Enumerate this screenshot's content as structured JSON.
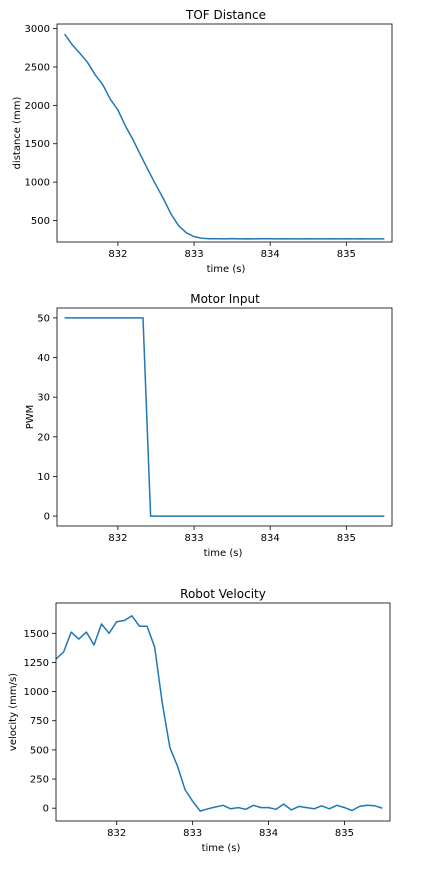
{
  "chart_data": [
    {
      "type": "line",
      "title": "TOF Distance",
      "xlabel": "time (s)",
      "ylabel": "distance (mm)",
      "xlim": [
        831.2,
        835.6
      ],
      "ylim": [
        220,
        3060
      ],
      "xticks": [
        832,
        833,
        834,
        835
      ],
      "yticks": [
        500,
        1000,
        1500,
        2000,
        2500,
        3000
      ],
      "x": [
        831.3,
        831.4,
        831.5,
        831.6,
        831.7,
        831.8,
        831.9,
        832.0,
        832.1,
        832.2,
        832.3,
        832.4,
        832.5,
        832.6,
        832.7,
        832.8,
        832.9,
        833.0,
        833.1,
        833.2,
        833.3,
        833.4,
        833.5,
        833.6,
        833.7,
        833.8,
        833.9,
        834.0,
        834.1,
        834.2,
        834.3,
        834.4,
        834.5,
        834.6,
        834.7,
        834.8,
        834.9,
        835.0,
        835.1,
        835.2,
        835.3,
        835.4,
        835.5
      ],
      "y": [
        2930,
        2790,
        2680,
        2560,
        2400,
        2270,
        2080,
        1940,
        1730,
        1550,
        1350,
        1150,
        960,
        780,
        580,
        430,
        340,
        290,
        270,
        262,
        262,
        260,
        264,
        261,
        263,
        260,
        262,
        262,
        261,
        263,
        260,
        261,
        262,
        260,
        261,
        262,
        261,
        263,
        261,
        262,
        260,
        261,
        262
      ],
      "color": "#1f77b4"
    },
    {
      "type": "line",
      "title": "Motor Input",
      "xlabel": "time (s)",
      "ylabel": "PWM",
      "xlim": [
        831.2,
        835.6
      ],
      "ylim": [
        -2.5,
        52.5
      ],
      "xticks": [
        832,
        833,
        834,
        835
      ],
      "yticks": [
        0,
        10,
        20,
        30,
        40,
        50
      ],
      "x": [
        831.3,
        832.33,
        832.43,
        835.5
      ],
      "y": [
        50,
        50,
        0,
        0
      ],
      "color": "#1f77b4"
    },
    {
      "type": "line",
      "title": "Robot Velocity",
      "xlabel": "time (s)",
      "ylabel": "velocity (mm/s)",
      "xlim": [
        831.2,
        835.6
      ],
      "ylim": [
        -110,
        1760
      ],
      "xticks": [
        832,
        833,
        834,
        835
      ],
      "yticks": [
        0,
        250,
        500,
        750,
        1000,
        1250,
        1500
      ],
      "x": [
        831.2,
        831.3,
        831.4,
        831.5,
        831.6,
        831.7,
        831.8,
        831.9,
        832.0,
        832.1,
        832.2,
        832.3,
        832.4,
        832.5,
        832.6,
        832.7,
        832.8,
        832.9,
        833.0,
        833.1,
        833.2,
        833.3,
        833.4,
        833.5,
        833.6,
        833.7,
        833.8,
        833.9,
        834.0,
        834.1,
        834.2,
        834.3,
        834.4,
        834.5,
        834.6,
        834.7,
        834.8,
        834.9,
        835.0,
        835.1,
        835.2,
        835.3,
        835.4,
        835.5
      ],
      "y": [
        1280,
        1340,
        1510,
        1450,
        1510,
        1400,
        1580,
        1500,
        1600,
        1610,
        1650,
        1560,
        1560,
        1380,
        900,
        520,
        360,
        160,
        60,
        -25,
        -5,
        10,
        25,
        -5,
        5,
        -10,
        25,
        5,
        5,
        -10,
        35,
        -15,
        15,
        5,
        -5,
        20,
        -5,
        25,
        5,
        -20,
        15,
        25,
        20,
        0
      ],
      "color": "#1f77b4"
    }
  ]
}
